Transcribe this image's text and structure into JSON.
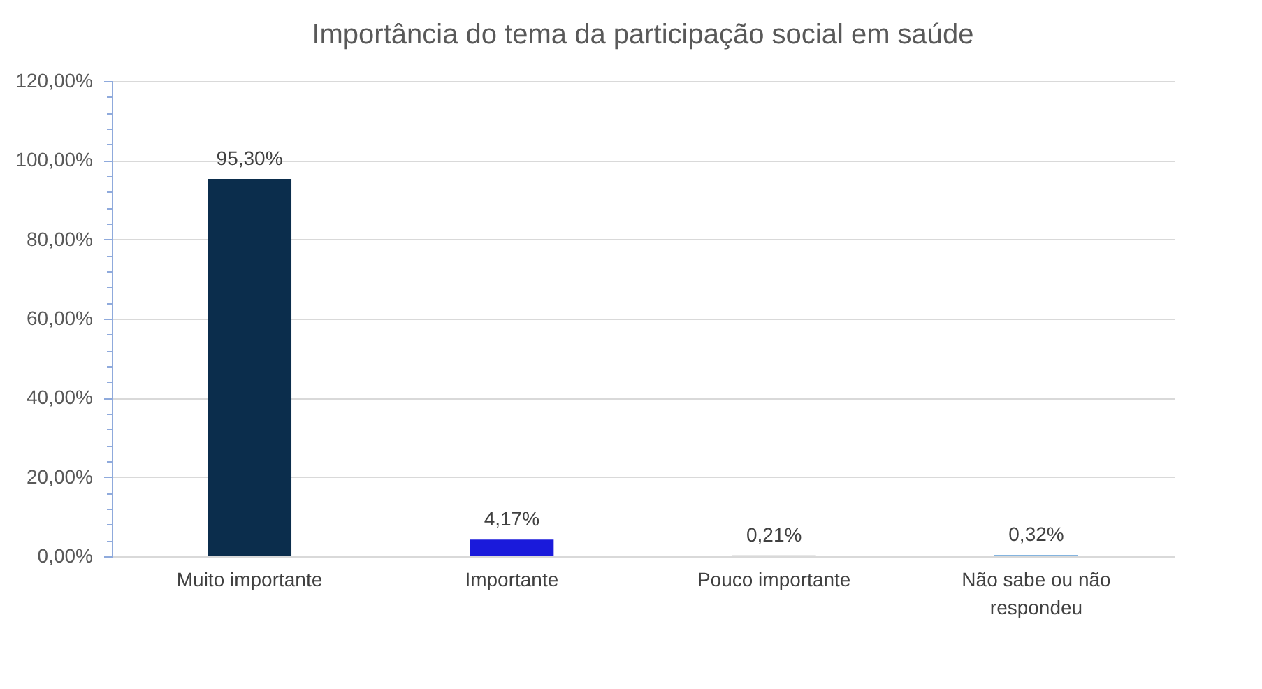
{
  "chart_data": {
    "type": "bar",
    "title": "Importância do tema da participação social em saúde",
    "categories": [
      "Muito importante",
      "Importante",
      "Pouco importante",
      "Não sabe ou não\nrespondeu"
    ],
    "values": [
      95.3,
      4.17,
      0.21,
      0.32
    ],
    "colors": [
      "#0b2d4c",
      "#1a1adb",
      "#a5a5a5",
      "#5b9bd5"
    ],
    "value_labels": [
      "95,30%",
      "4,17%",
      "0,21%",
      "0,32%"
    ],
    "ylim": [
      0,
      120
    ],
    "yticks": [
      {
        "value": 0,
        "label": "0,00%"
      },
      {
        "value": 4,
        "label": null
      },
      {
        "value": 8,
        "label": null
      },
      {
        "value": 12,
        "label": null
      },
      {
        "value": 16,
        "label": null
      },
      {
        "value": 20,
        "label": "20,00%"
      },
      {
        "value": 24,
        "label": null
      },
      {
        "value": 28,
        "label": null
      },
      {
        "value": 32,
        "label": null
      },
      {
        "value": 36,
        "label": null
      },
      {
        "value": 40,
        "label": "40,00%"
      },
      {
        "value": 44,
        "label": null
      },
      {
        "value": 48,
        "label": null
      },
      {
        "value": 52,
        "label": null
      },
      {
        "value": 56,
        "label": null
      },
      {
        "value": 60,
        "label": "60,00%"
      },
      {
        "value": 64,
        "label": null
      },
      {
        "value": 68,
        "label": null
      },
      {
        "value": 72,
        "label": null
      },
      {
        "value": 76,
        "label": null
      },
      {
        "value": 80,
        "label": "80,00%"
      },
      {
        "value": 84,
        "label": null
      },
      {
        "value": 88,
        "label": null
      },
      {
        "value": 92,
        "label": null
      },
      {
        "value": 96,
        "label": null
      },
      {
        "value": 100,
        "label": "100,00%"
      },
      {
        "value": 104,
        "label": null
      },
      {
        "value": 108,
        "label": null
      },
      {
        "value": 112,
        "label": null
      },
      {
        "value": 116,
        "label": null
      },
      {
        "value": 120,
        "label": "120,00%"
      }
    ],
    "grid": "y"
  }
}
